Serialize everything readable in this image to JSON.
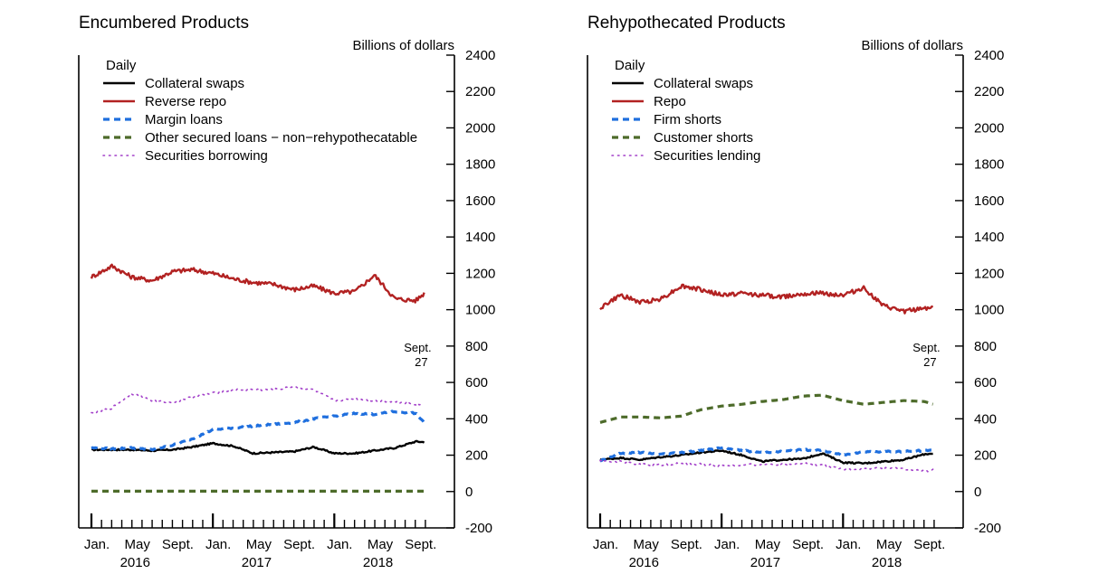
{
  "chart_data": [
    {
      "type": "line",
      "title": "Encumbered Products",
      "ylabel": "Billions of dollars",
      "frequency": "Daily",
      "ylim": [
        -200,
        2400
      ],
      "yticks": [
        -200,
        0,
        200,
        400,
        600,
        800,
        1000,
        1200,
        1400,
        1600,
        1800,
        2000,
        2200,
        2400
      ],
      "y_axis_side": "right",
      "month_labels": [
        "Jan.",
        "May",
        "Sept.",
        "Jan.",
        "May",
        "Sept.",
        "Jan.",
        "May",
        "Sept."
      ],
      "year_labels": [
        "2016",
        "2017",
        "2018"
      ],
      "annotation": [
        "Sept.",
        "27"
      ],
      "legend_position": "top-left",
      "x": [
        2016.0,
        2016.17,
        2016.33,
        2016.5,
        2016.67,
        2016.83,
        2017.0,
        2017.17,
        2017.33,
        2017.5,
        2017.67,
        2017.83,
        2018.0,
        2018.17,
        2018.33,
        2018.5,
        2018.67,
        2018.74
      ],
      "series": [
        {
          "name": "Collateral swaps",
          "color": "#000000",
          "style": "solid",
          "values": [
            230,
            230,
            230,
            225,
            230,
            245,
            265,
            250,
            210,
            215,
            220,
            245,
            210,
            210,
            225,
            240,
            275,
            272
          ]
        },
        {
          "name": "Reverse repo",
          "color": "#b22222",
          "style": "solid",
          "values": [
            1180,
            1240,
            1180,
            1160,
            1210,
            1220,
            1200,
            1170,
            1150,
            1140,
            1110,
            1130,
            1090,
            1100,
            1190,
            1060,
            1050,
            1090
          ]
        },
        {
          "name": "Margin loans",
          "color": "#1f6fde",
          "style": "dashed",
          "values": [
            240,
            235,
            240,
            230,
            255,
            290,
            340,
            350,
            360,
            370,
            380,
            400,
            415,
            430,
            425,
            440,
            430,
            380
          ]
        },
        {
          "name": "Other secured loans − non−rehypothecatable",
          "color": "#4d6b2a",
          "style": "dashed",
          "values": [
            2,
            2,
            2,
            2,
            2,
            2,
            2,
            2,
            2,
            2,
            2,
            2,
            2,
            2,
            2,
            2,
            2,
            2
          ]
        },
        {
          "name": "Securities borrowing",
          "color": "#a23fc9",
          "style": "dotted",
          "values": [
            430,
            460,
            540,
            500,
            490,
            520,
            540,
            560,
            560,
            560,
            575,
            560,
            500,
            510,
            500,
            495,
            480,
            480
          ]
        }
      ]
    },
    {
      "type": "line",
      "title": "Rehypothecated Products",
      "ylabel": "Billions of dollars",
      "frequency": "Daily",
      "ylim": [
        -200,
        2400
      ],
      "yticks": [
        -200,
        0,
        200,
        400,
        600,
        800,
        1000,
        1200,
        1400,
        1600,
        1800,
        2000,
        2200,
        2400
      ],
      "y_axis_side": "right",
      "month_labels": [
        "Jan.",
        "May",
        "Sept.",
        "Jan.",
        "May",
        "Sept.",
        "Jan.",
        "May",
        "Sept."
      ],
      "year_labels": [
        "2016",
        "2017",
        "2018"
      ],
      "annotation": [
        "Sept.",
        "27"
      ],
      "legend_position": "top-left",
      "x": [
        2016.0,
        2016.17,
        2016.33,
        2016.5,
        2016.67,
        2016.83,
        2017.0,
        2017.17,
        2017.33,
        2017.5,
        2017.67,
        2017.83,
        2018.0,
        2018.17,
        2018.33,
        2018.5,
        2018.67,
        2018.74
      ],
      "series": [
        {
          "name": "Collateral swaps",
          "color": "#000000",
          "style": "solid",
          "values": [
            175,
            185,
            175,
            190,
            200,
            215,
            225,
            200,
            165,
            175,
            180,
            210,
            160,
            155,
            165,
            175,
            205,
            210
          ]
        },
        {
          "name": "Repo",
          "color": "#b22222",
          "style": "solid",
          "values": [
            1010,
            1080,
            1040,
            1060,
            1130,
            1110,
            1080,
            1090,
            1080,
            1070,
            1090,
            1090,
            1080,
            1120,
            1020,
            990,
            1010,
            1010
          ]
        },
        {
          "name": "Firm shorts",
          "color": "#1f6fde",
          "style": "dashed",
          "values": [
            170,
            210,
            215,
            205,
            215,
            225,
            240,
            225,
            215,
            220,
            230,
            225,
            200,
            220,
            220,
            220,
            225,
            230
          ]
        },
        {
          "name": "Customer shorts",
          "color": "#4d6b2a",
          "style": "dashed",
          "values": [
            380,
            410,
            410,
            405,
            415,
            450,
            470,
            480,
            495,
            505,
            525,
            530,
            500,
            480,
            490,
            500,
            495,
            480
          ]
        },
        {
          "name": "Securities lending",
          "color": "#a23fc9",
          "style": "dotted",
          "values": [
            165,
            165,
            150,
            145,
            155,
            150,
            140,
            145,
            150,
            150,
            155,
            145,
            120,
            125,
            130,
            125,
            110,
            120
          ]
        }
      ]
    }
  ]
}
